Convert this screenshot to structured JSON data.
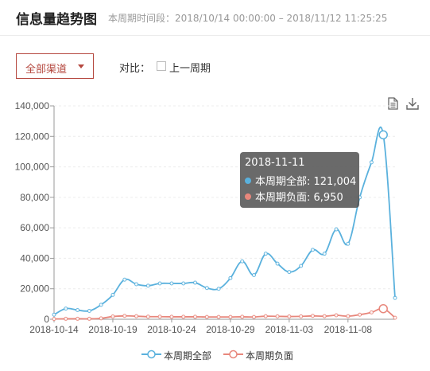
{
  "header": {
    "title": "信息量趋势图",
    "period_label": "本周期时间段：",
    "period_range": "2018/10/14 00:00:00 – 2018/11/12 11:25:25"
  },
  "filters": {
    "channel_select_value": "全部渠道",
    "compare_label": "对比：",
    "compare_checkbox_label": "上一周期",
    "compare_checked": false
  },
  "toolbar": {
    "data_view_icon": "document-icon",
    "download_icon": "download-icon"
  },
  "tooltip": {
    "date": "2018-11-11",
    "rows": [
      {
        "label": "本周期全部: 121,004",
        "color": "#5ab1dd"
      },
      {
        "label": "本周期负面: 6,950",
        "color": "#e8877c"
      }
    ]
  },
  "colors": {
    "all": "#5ab1dd",
    "negative": "#e8877c",
    "accent": "#b5483f"
  },
  "chart_data": {
    "type": "line",
    "x": [
      "2018-10-14",
      "2018-10-15",
      "2018-10-16",
      "2018-10-17",
      "2018-10-18",
      "2018-10-19",
      "2018-10-20",
      "2018-10-21",
      "2018-10-22",
      "2018-10-23",
      "2018-10-24",
      "2018-10-25",
      "2018-10-26",
      "2018-10-27",
      "2018-10-28",
      "2018-10-29",
      "2018-10-30",
      "2018-10-31",
      "2018-11-01",
      "2018-11-02",
      "2018-11-03",
      "2018-11-04",
      "2018-11-05",
      "2018-11-06",
      "2018-11-07",
      "2018-11-08",
      "2018-11-09",
      "2018-11-10",
      "2018-11-11",
      "2018-11-12"
    ],
    "tick_labels": [
      "2018-10-14",
      "2018-10-19",
      "2018-10-24",
      "2018-10-29",
      "2018-11-03",
      "2018-11-08"
    ],
    "series": [
      {
        "name": "本周期全部",
        "values": [
          3000,
          7000,
          6000,
          5500,
          9500,
          16000,
          26000,
          23000,
          22000,
          23500,
          23500,
          23500,
          24000,
          20500,
          20000,
          27000,
          38000,
          29000,
          43000,
          36500,
          31000,
          35000,
          45500,
          43000,
          59000,
          49500,
          80000,
          103000,
          121004,
          14000
        ]
      },
      {
        "name": "本周期负面",
        "values": [
          200,
          300,
          300,
          300,
          600,
          1800,
          2200,
          2000,
          1700,
          1700,
          1600,
          1600,
          1600,
          1500,
          1500,
          1500,
          1600,
          1500,
          2000,
          1900,
          1800,
          1900,
          2200,
          2000,
          2600,
          2000,
          3000,
          4500,
          6950,
          1000
        ]
      }
    ],
    "y_ticks": [
      0,
      20000,
      40000,
      60000,
      80000,
      100000,
      120000,
      140000
    ],
    "ylim": [
      0,
      140000
    ],
    "grid": true,
    "legend_position": "bottom-center"
  }
}
